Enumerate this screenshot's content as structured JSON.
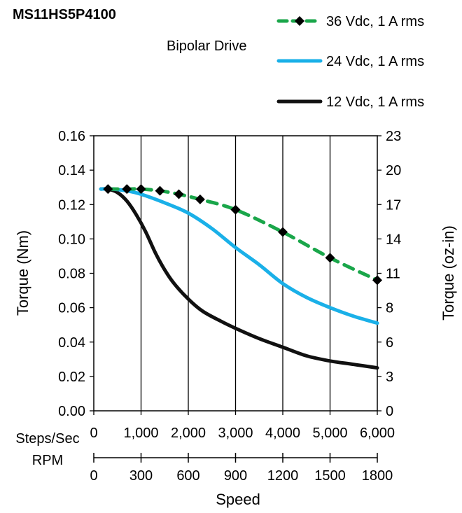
{
  "chart_data": {
    "type": "line",
    "title": "MS11HS5P4100",
    "subtitle": "Bipolar Drive",
    "xlabel": "Speed",
    "ylabel": "Torque (Nm)",
    "y2label": "Torque (oz-in)",
    "x_primary_label": "Steps/Sec",
    "x_secondary_label": "RPM",
    "xlim": [
      0,
      6000
    ],
    "ylim": [
      0,
      0.16
    ],
    "x_ticks": [
      0,
      1000,
      2000,
      3000,
      4000,
      5000,
      6000
    ],
    "x_tick_labels": [
      "0",
      "1,000",
      "2,000",
      "3,000",
      "4,000",
      "5,000",
      "6,000"
    ],
    "rpm_tick_labels": [
      "0",
      "300",
      "600",
      "900",
      "1200",
      "1500",
      "1800"
    ],
    "y_ticks": [
      0,
      0.02,
      0.04,
      0.06,
      0.08,
      0.1,
      0.12,
      0.14,
      0.16
    ],
    "y_tick_labels": [
      "0.00",
      "0.02",
      "0.04",
      "0.06",
      "0.08",
      "0.10",
      "0.12",
      "0.14",
      "0.16"
    ],
    "y2_tick_labels": [
      "0",
      "3",
      "6",
      "8",
      "11",
      "14",
      "17",
      "20",
      "23"
    ],
    "grid": "vertical",
    "legend_position": "top-right",
    "series": [
      {
        "name": "36 Vdc, 1 A rms",
        "color": "#1aa64a",
        "style": "dashed-markers",
        "x": [
          300,
          700,
          1000,
          1400,
          1800,
          2250,
          3000,
          4000,
          5000,
          6000
        ],
        "y": [
          0.129,
          0.129,
          0.129,
          0.128,
          0.126,
          0.123,
          0.117,
          0.104,
          0.089,
          0.076
        ]
      },
      {
        "name": "24 Vdc, 1 A rms",
        "color": "#1ab0e8",
        "style": "solid",
        "x": [
          150,
          400,
          700,
          1000,
          1500,
          2000,
          2500,
          3000,
          3500,
          4000,
          4500,
          5000,
          5500,
          6000
        ],
        "y": [
          0.129,
          0.129,
          0.128,
          0.126,
          0.121,
          0.115,
          0.106,
          0.095,
          0.085,
          0.074,
          0.066,
          0.06,
          0.055,
          0.051
        ]
      },
      {
        "name": "12 Vdc, 1 A rms",
        "color": "#111111",
        "style": "solid",
        "x": [
          150,
          300,
          500,
          700,
          900,
          1100,
          1300,
          1500,
          1700,
          2000,
          2300,
          2700,
          3000,
          3500,
          4000,
          4500,
          5000,
          5500,
          6000
        ],
        "y": [
          0.129,
          0.129,
          0.127,
          0.122,
          0.114,
          0.104,
          0.092,
          0.082,
          0.074,
          0.065,
          0.058,
          0.052,
          0.048,
          0.042,
          0.037,
          0.032,
          0.029,
          0.027,
          0.025
        ]
      }
    ]
  }
}
